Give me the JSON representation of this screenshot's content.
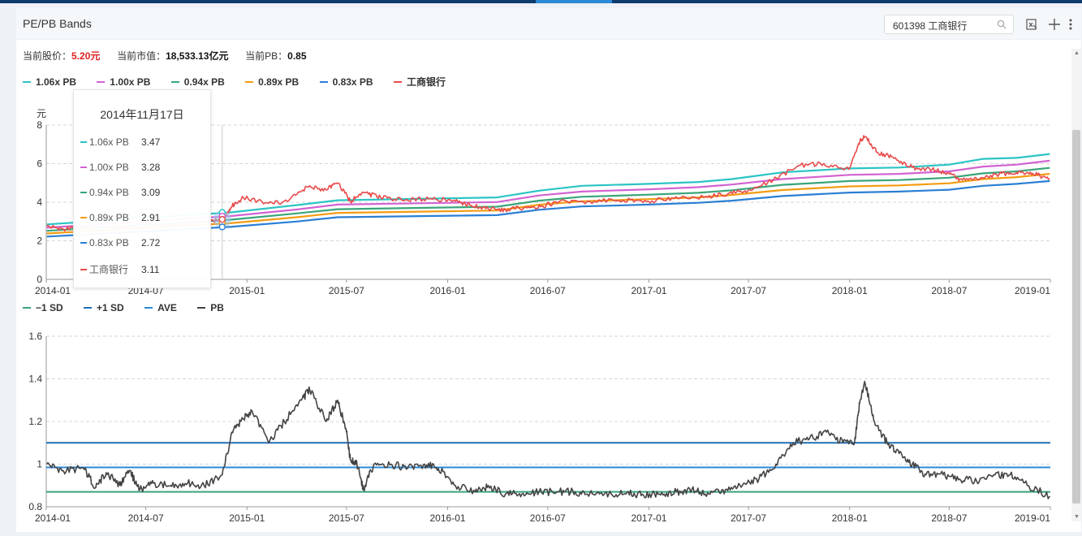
{
  "header": {
    "title": "PE/PB Bands",
    "search_value": "601398 工商银行"
  },
  "stats": {
    "price_label": "当前股价：",
    "price_value": "5.20元",
    "mcap_label": "当前市值：",
    "mcap_value": "18,533.13亿元",
    "pb_label": "当前PB：",
    "pb_value": "0.85"
  },
  "colors": {
    "band106": "#2bc4c4",
    "band100": "#d263d2",
    "band094": "#3aa57a",
    "band089": "#f39c12",
    "band083": "#2a7fd4",
    "price": "#e84b4b",
    "pb": "#444444",
    "sd_minus": "#3aa57a",
    "sd_plus": "#1f6fb5",
    "ave": "#2a8ad8"
  },
  "tooltip": {
    "date": "2014年11月17日",
    "rows": [
      {
        "name": "1.06x PB",
        "value": "3.47"
      },
      {
        "name": "1.00x PB",
        "value": "3.28"
      },
      {
        "name": "0.94x PB",
        "value": "3.09"
      },
      {
        "name": "0.89x PB",
        "value": "2.91"
      },
      {
        "name": "0.83x PB",
        "value": "2.72"
      },
      {
        "name": "工商银行",
        "value": "3.11"
      }
    ]
  },
  "chart_data": [
    {
      "type": "line",
      "title": "",
      "ylabel": "元",
      "ylim": [
        0,
        8
      ],
      "yticks": [
        "0",
        "2",
        "4",
        "6",
        "8"
      ],
      "xlim": [
        "2014-01",
        "2019-01"
      ],
      "xticks": [
        "2014-01",
        "2014-07",
        "2015-01",
        "2015-07",
        "2016-01",
        "2016-07",
        "2017-01",
        "2017-07",
        "2018-01",
        "2018-07",
        "2019-01"
      ],
      "grid": true,
      "legend": "top-left",
      "series": [
        {
          "name": "1.06x PB",
          "x": [
            "2014-01-02",
            "2014-12-01",
            "2015-04-01",
            "2015-06-15",
            "2016-03-31",
            "2016-06-15",
            "2016-09-01",
            "2017-01-01",
            "2017-04-01",
            "2017-06-01",
            "2017-09-01",
            "2018-01-01",
            "2018-04-01",
            "2018-07-01",
            "2018-09-01",
            "2018-11-01",
            "2018-12-31"
          ],
          "values": [
            2.85,
            3.47,
            3.85,
            4.1,
            4.25,
            4.6,
            4.85,
            4.95,
            5.05,
            5.2,
            5.55,
            5.75,
            5.8,
            5.95,
            6.25,
            6.3,
            6.5
          ]
        },
        {
          "name": "1.00x PB",
          "x": [
            "2014-01-02",
            "2014-12-01",
            "2015-04-01",
            "2015-06-15",
            "2016-03-31",
            "2016-06-15",
            "2016-09-01",
            "2017-01-01",
            "2017-04-01",
            "2017-06-01",
            "2017-09-01",
            "2018-01-01",
            "2018-04-01",
            "2018-07-01",
            "2018-09-01",
            "2018-11-01",
            "2018-12-31"
          ],
          "values": [
            2.68,
            3.28,
            3.62,
            3.88,
            4.01,
            4.35,
            4.55,
            4.67,
            4.78,
            4.92,
            5.2,
            5.42,
            5.47,
            5.6,
            5.85,
            5.95,
            6.15
          ]
        },
        {
          "name": "0.94x PB",
          "x": [
            "2014-01-02",
            "2014-12-01",
            "2015-04-01",
            "2015-06-15",
            "2016-03-31",
            "2016-06-15",
            "2016-09-01",
            "2017-01-01",
            "2017-04-01",
            "2017-06-01",
            "2017-09-01",
            "2018-01-01",
            "2018-04-01",
            "2018-07-01",
            "2018-09-01",
            "2018-11-01",
            "2018-12-31"
          ],
          "values": [
            2.52,
            3.09,
            3.42,
            3.64,
            3.77,
            4.08,
            4.28,
            4.39,
            4.49,
            4.62,
            4.9,
            5.1,
            5.15,
            5.27,
            5.5,
            5.6,
            5.78
          ]
        },
        {
          "name": "0.89x PB",
          "x": [
            "2014-01-02",
            "2014-12-01",
            "2015-04-01",
            "2015-06-15",
            "2016-03-31",
            "2016-06-15",
            "2016-09-01",
            "2017-01-01",
            "2017-04-01",
            "2017-06-01",
            "2017-09-01",
            "2018-01-01",
            "2018-04-01",
            "2018-07-01",
            "2018-09-01",
            "2018-11-01",
            "2018-12-31"
          ],
          "values": [
            2.38,
            2.91,
            3.22,
            3.45,
            3.57,
            3.87,
            4.05,
            4.16,
            4.25,
            4.38,
            4.63,
            4.82,
            4.87,
            4.98,
            5.2,
            5.3,
            5.47
          ]
        },
        {
          "name": "0.83x PB",
          "x": [
            "2014-01-02",
            "2014-12-01",
            "2015-04-01",
            "2015-06-15",
            "2016-03-31",
            "2016-06-15",
            "2016-09-01",
            "2017-01-01",
            "2017-04-01",
            "2017-06-01",
            "2017-09-01",
            "2018-01-01",
            "2018-04-01",
            "2018-07-01",
            "2018-09-01",
            "2018-11-01",
            "2018-12-31"
          ],
          "values": [
            2.22,
            2.72,
            3.0,
            3.22,
            3.33,
            3.61,
            3.78,
            3.88,
            3.97,
            4.08,
            4.32,
            4.5,
            4.55,
            4.65,
            4.85,
            4.95,
            5.1
          ]
        },
        {
          "name": "工商银行",
          "x": [
            "2014-01-02",
            "2014-02-01",
            "2014-03-10",
            "2014-04-15",
            "2014-05-15",
            "2014-06-20",
            "2014-08-01",
            "2014-09-15",
            "2014-10-15",
            "2014-11-17",
            "2014-12-05",
            "2014-12-25",
            "2015-02-10",
            "2015-03-15",
            "2015-04-20",
            "2015-05-25",
            "2015-06-15",
            "2015-07-08",
            "2015-08-01",
            "2015-09-01",
            "2015-10-15",
            "2015-12-01",
            "2016-01-15",
            "2016-02-10",
            "2016-03-15",
            "2016-04-15",
            "2016-05-20",
            "2016-06-20",
            "2016-07-20",
            "2016-09-15",
            "2016-11-15",
            "2016-12-31",
            "2017-02-15",
            "2017-04-15",
            "2017-05-25",
            "2017-06-30",
            "2017-08-15",
            "2017-09-30",
            "2017-11-15",
            "2017-12-31",
            "2018-01-20",
            "2018-01-29",
            "2018-02-20",
            "2018-03-20",
            "2018-04-25",
            "2018-05-31",
            "2018-06-30",
            "2018-07-20",
            "2018-08-25",
            "2018-09-30",
            "2018-10-31",
            "2018-11-30",
            "2018-12-31"
          ],
          "values": [
            2.75,
            2.62,
            2.68,
            2.6,
            2.72,
            2.62,
            2.78,
            2.9,
            2.95,
            3.11,
            3.8,
            4.25,
            3.95,
            4.05,
            4.8,
            4.65,
            5.0,
            4.05,
            4.5,
            4.25,
            4.1,
            4.2,
            4.05,
            3.85,
            3.65,
            3.6,
            3.72,
            3.8,
            4.0,
            4.05,
            4.1,
            4.05,
            4.2,
            4.3,
            4.45,
            4.6,
            5.15,
            5.9,
            6.0,
            5.7,
            7.2,
            7.4,
            6.6,
            6.35,
            5.8,
            5.7,
            5.5,
            5.2,
            5.2,
            5.45,
            5.55,
            5.5,
            5.2
          ]
        }
      ]
    },
    {
      "type": "line",
      "title": "",
      "ylim": [
        0.8,
        1.6
      ],
      "yticks": [
        "0.8",
        "1",
        "1.2",
        "1.4",
        "1.6"
      ],
      "xlim": [
        "2014-01",
        "2019-01"
      ],
      "xticks": [
        "2014-01",
        "2014-07",
        "2015-01",
        "2015-07",
        "2016-01",
        "2016-07",
        "2017-01",
        "2017-07",
        "2018-01",
        "2018-07",
        "2019-01"
      ],
      "grid": true,
      "legend": "top-left",
      "series": [
        {
          "name": "−1 SD",
          "values": [
            0.87
          ]
        },
        {
          "name": "+1 SD",
          "values": [
            1.1
          ]
        },
        {
          "name": "AVE",
          "values": [
            0.985
          ]
        },
        {
          "name": "PB",
          "x": [
            "2014-01-02",
            "2014-02-01",
            "2014-03-10",
            "2014-04-01",
            "2014-04-20",
            "2014-05-15",
            "2014-06-01",
            "2014-06-20",
            "2014-07-15",
            "2014-08-15",
            "2014-09-15",
            "2014-10-15",
            "2014-11-17",
            "2014-12-05",
            "2014-12-20",
            "2015-01-10",
            "2015-02-10",
            "2015-03-10",
            "2015-04-10",
            "2015-04-25",
            "2015-05-25",
            "2015-06-15",
            "2015-07-01",
            "2015-07-08",
            "2015-07-20",
            "2015-08-01",
            "2015-08-20",
            "2015-09-20",
            "2015-10-20",
            "2015-11-20",
            "2015-12-15",
            "2016-01-15",
            "2016-02-20",
            "2016-03-15",
            "2016-04-15",
            "2016-05-15",
            "2016-06-15",
            "2016-07-20",
            "2016-08-20",
            "2016-09-20",
            "2016-10-20",
            "2016-11-20",
            "2016-12-20",
            "2017-01-20",
            "2017-02-20",
            "2017-03-20",
            "2017-04-20",
            "2017-05-20",
            "2017-06-20",
            "2017-07-20",
            "2017-08-20",
            "2017-09-20",
            "2017-10-20",
            "2017-11-20",
            "2017-12-20",
            "2018-01-10",
            "2018-01-20",
            "2018-01-29",
            "2018-02-15",
            "2018-03-10",
            "2018-04-01",
            "2018-04-25",
            "2018-05-20",
            "2018-06-20",
            "2018-07-20",
            "2018-08-20",
            "2018-09-20",
            "2018-10-20",
            "2018-11-20",
            "2018-12-31"
          ],
          "values": [
            1.0,
            0.97,
            0.98,
            0.89,
            0.96,
            0.9,
            0.97,
            0.88,
            0.91,
            0.9,
            0.91,
            0.9,
            0.95,
            1.15,
            1.2,
            1.25,
            1.1,
            1.2,
            1.3,
            1.35,
            1.2,
            1.3,
            1.15,
            1.02,
            1.0,
            0.88,
            1.0,
            1.0,
            0.98,
            1.0,
            0.98,
            0.9,
            0.87,
            0.9,
            0.86,
            0.86,
            0.87,
            0.87,
            0.87,
            0.86,
            0.86,
            0.86,
            0.86,
            0.86,
            0.87,
            0.88,
            0.86,
            0.88,
            0.9,
            0.93,
            1.0,
            1.1,
            1.12,
            1.15,
            1.1,
            1.1,
            1.3,
            1.38,
            1.2,
            1.1,
            1.05,
            1.0,
            0.95,
            0.95,
            0.93,
            0.92,
            0.95,
            0.95,
            0.9,
            0.85
          ]
        }
      ]
    }
  ]
}
